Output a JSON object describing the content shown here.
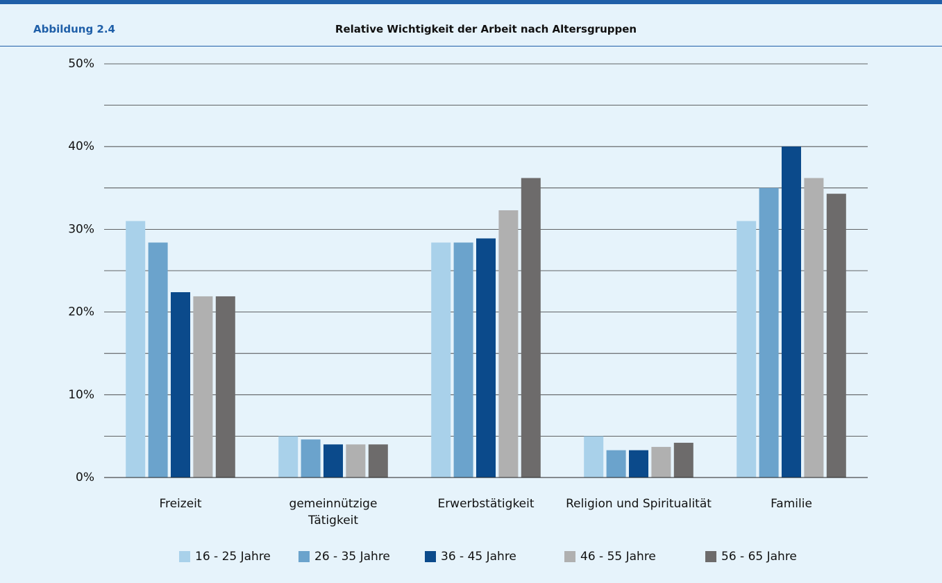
{
  "header": {
    "label": "Abbildung 2.4"
  },
  "chart_data": {
    "type": "bar",
    "title": "Relative Wichtigkeit der Arbeit nach Altersgruppen",
    "categories": [
      "Freizeit",
      "gemeinnützige\nTätigkeit",
      "Erwerbstätigkeit",
      "Religion und Spiritualität",
      "Familie"
    ],
    "series": [
      {
        "name": "16 - 25 Jahre",
        "color": "#a9d1ea",
        "values": [
          31.0,
          5.0,
          28.4,
          5.0,
          31.0
        ]
      },
      {
        "name": "26 - 35 Jahre",
        "color": "#6ba3cc",
        "values": [
          28.4,
          4.6,
          28.4,
          3.3,
          35.0
        ]
      },
      {
        "name": "36 - 45 Jahre",
        "color": "#0b4a8b",
        "values": [
          22.4,
          4.0,
          28.9,
          3.3,
          40.0
        ]
      },
      {
        "name": "46 - 55 Jahre",
        "color": "#b0b0b0",
        "values": [
          21.9,
          4.0,
          32.3,
          3.7,
          36.2
        ]
      },
      {
        "name": "56 - 65 Jahre",
        "color": "#6d6b6b",
        "values": [
          21.9,
          4.0,
          36.2,
          4.2,
          34.3
        ]
      }
    ],
    "ylim": [
      0,
      50
    ],
    "yticks": [
      {
        "value": 0,
        "label": "0%"
      },
      {
        "value": 10,
        "label": "10%"
      },
      {
        "value": 20,
        "label": "20%"
      },
      {
        "value": 30,
        "label": "30%"
      },
      {
        "value": 40,
        "label": "40%"
      },
      {
        "value": 50,
        "label": "50%"
      }
    ],
    "minor_yticks": [
      5,
      15,
      25,
      35,
      45
    ],
    "grid": true,
    "legend": "bottom"
  }
}
